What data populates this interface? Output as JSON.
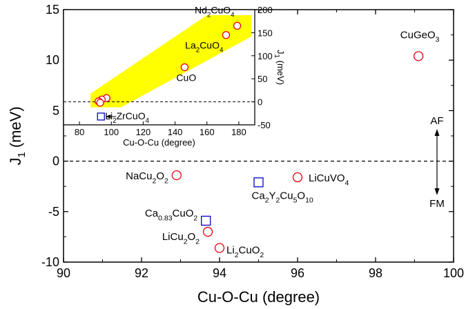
{
  "chart_data": [
    {
      "type": "scatter",
      "title": "",
      "xlabel": "Cu-O-Cu (degree)",
      "ylabel": "J",
      "ylabel_sub": "1",
      "ylabel_unit": " (meV)",
      "xlim": [
        90,
        100
      ],
      "ylim": [
        -10,
        15
      ],
      "xticks": [
        "90",
        "92",
        "94",
        "96",
        "98",
        "100"
      ],
      "yticks": [
        "-10",
        "-5",
        "0",
        "5",
        "10",
        "15"
      ],
      "zero_line": true,
      "annotations": {
        "af": "AF",
        "fm": "FM"
      },
      "series": [
        {
          "marker": "circle",
          "color": "#e8000b",
          "points": [
            {
              "x": 99.1,
              "y": 10.4,
              "label": [
                "CuGeO",
                "3"
              ]
            },
            {
              "x": 96.0,
              "y": -1.6,
              "label": [
                "LiCuVO",
                "4"
              ]
            },
            {
              "x": 92.9,
              "y": -1.4,
              "label": [
                "NaCu",
                "2",
                "O",
                "2"
              ]
            },
            {
              "x": 93.7,
              "y": -7.0,
              "label": [
                "LiCu",
                "2",
                "O",
                "2"
              ]
            },
            {
              "x": 94.0,
              "y": -8.6,
              "label": [
                "Li",
                "2",
                "CuO",
                "2"
              ]
            }
          ]
        },
        {
          "marker": "square",
          "color": "#0000cc",
          "points": [
            {
              "x": 95.0,
              "y": -2.1,
              "label": [
                "Ca",
                "2",
                "Y",
                "2",
                "Cu",
                "5",
                "O",
                "10"
              ]
            },
            {
              "x": 93.65,
              "y": -5.9,
              "label": [
                "Ca",
                "0.83",
                "CuO",
                "2"
              ]
            }
          ]
        }
      ]
    },
    {
      "type": "scatter",
      "title": "",
      "xlabel": "Cu-O-Cu (degree)",
      "ylabel": "J",
      "ylabel_sub": "1",
      "ylabel_unit": " (meV)",
      "xlim": [
        70,
        190
      ],
      "ylim": [
        -50,
        200
      ],
      "xticks": [
        "80",
        "100",
        "120",
        "140",
        "160",
        "180"
      ],
      "yticks": [
        "-50",
        "0",
        "50",
        "100",
        "150",
        "200"
      ],
      "zero_line": true,
      "band_color": "#ffff00",
      "series": [
        {
          "marker": "circle",
          "color": "#e8000b",
          "points": [
            {
              "x": 179,
              "y": 165,
              "label": [
                "Nd",
                "2",
                "CuO",
                "4"
              ]
            },
            {
              "x": 172,
              "y": 145,
              "label": [
                "La",
                "2",
                "CuO",
                "4"
              ]
            },
            {
              "x": 146,
              "y": 75,
              "label": [
                "CuO"
              ]
            },
            {
              "x": 97,
              "y": 8,
              "label": null
            },
            {
              "x": 94,
              "y": 5,
              "label": null
            },
            {
              "x": 92,
              "y": 1,
              "label": null
            },
            {
              "x": 93,
              "y": -2,
              "label": null
            }
          ]
        },
        {
          "marker": "square",
          "color": "#0000cc",
          "points": [
            {
              "x": 93.5,
              "y": -32,
              "label": [
                "Li",
                "2",
                "ZrCuO",
                "4"
              ]
            }
          ]
        }
      ]
    }
  ]
}
